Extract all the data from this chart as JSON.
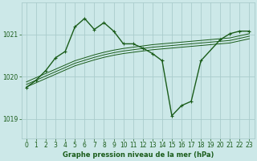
{
  "title": "Graphe pression niveau de la mer (hPa)",
  "background_color": "#cce8e8",
  "grid_color": "#aacccc",
  "line_color": "#1a5c1a",
  "xlim": [
    -0.5,
    23.5
  ],
  "ylim": [
    1018.55,
    1021.75
  ],
  "yticks": [
    1019,
    1020,
    1021
  ],
  "xticks": [
    0,
    1,
    2,
    3,
    4,
    5,
    6,
    7,
    8,
    9,
    10,
    11,
    12,
    13,
    14,
    15,
    16,
    17,
    18,
    19,
    20,
    21,
    22,
    23
  ],
  "main_line": {
    "x": [
      0,
      1,
      2,
      3,
      4,
      5,
      6,
      7,
      8,
      9,
      10,
      11,
      12,
      13,
      14,
      15,
      16,
      17,
      18,
      20,
      21,
      22,
      23
    ],
    "y": [
      1019.75,
      1019.92,
      1020.15,
      1020.45,
      1020.6,
      1021.18,
      1021.38,
      1021.12,
      1021.28,
      1021.08,
      1020.78,
      1020.78,
      1020.68,
      1020.55,
      1020.38,
      1019.08,
      1019.32,
      1019.42,
      1020.38,
      1020.88,
      1021.02,
      1021.08,
      1021.08
    ]
  },
  "band_lines": [
    {
      "x": [
        0,
        1,
        2,
        3,
        4,
        5,
        6,
        7,
        8,
        9,
        10,
        11,
        12,
        13,
        14,
        15,
        16,
        17,
        18,
        19,
        20,
        21,
        22,
        23
      ],
      "y": [
        1019.88,
        1019.98,
        1020.08,
        1020.18,
        1020.28,
        1020.38,
        1020.45,
        1020.52,
        1020.58,
        1020.63,
        1020.67,
        1020.7,
        1020.73,
        1020.76,
        1020.78,
        1020.8,
        1020.82,
        1020.84,
        1020.86,
        1020.88,
        1020.9,
        1020.92,
        1020.97,
        1021.02
      ]
    },
    {
      "x": [
        0,
        1,
        2,
        3,
        4,
        5,
        6,
        7,
        8,
        9,
        10,
        11,
        12,
        13,
        14,
        15,
        16,
        17,
        18,
        19,
        20,
        21,
        22,
        23
      ],
      "y": [
        1019.82,
        1019.92,
        1020.02,
        1020.12,
        1020.22,
        1020.32,
        1020.39,
        1020.46,
        1020.52,
        1020.57,
        1020.61,
        1020.64,
        1020.67,
        1020.7,
        1020.72,
        1020.74,
        1020.76,
        1020.78,
        1020.8,
        1020.82,
        1020.84,
        1020.86,
        1020.91,
        1020.96
      ]
    },
    {
      "x": [
        0,
        1,
        2,
        3,
        4,
        5,
        6,
        7,
        8,
        9,
        10,
        11,
        12,
        13,
        14,
        15,
        16,
        17,
        18,
        19,
        20,
        21,
        22,
        23
      ],
      "y": [
        1019.76,
        1019.86,
        1019.96,
        1020.06,
        1020.16,
        1020.26,
        1020.33,
        1020.4,
        1020.46,
        1020.51,
        1020.55,
        1020.58,
        1020.61,
        1020.64,
        1020.66,
        1020.68,
        1020.7,
        1020.72,
        1020.74,
        1020.76,
        1020.78,
        1020.8,
        1020.85,
        1020.9
      ]
    }
  ],
  "xlabel_fontsize": 6.0,
  "tick_fontsize": 5.5
}
